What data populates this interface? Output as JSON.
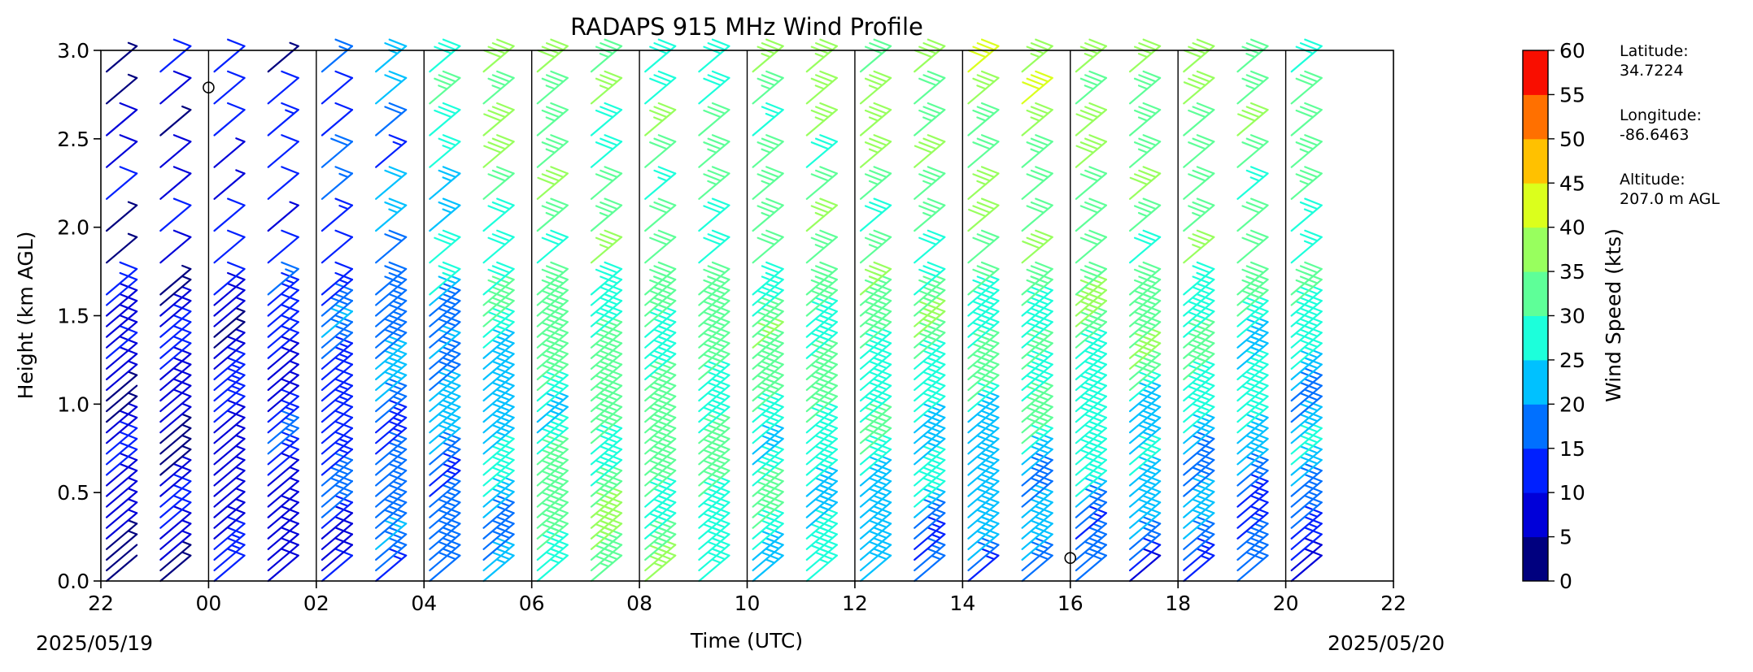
{
  "chart_data": {
    "type": "wind_barbs",
    "title": "RADAPS 915 MHz Wind Profile",
    "xlabel": "Time (UTC)",
    "ylabel": "Height (km AGL)",
    "x_tick_labels": [
      "22",
      "00",
      "02",
      "04",
      "06",
      "08",
      "10",
      "12",
      "14",
      "16",
      "18",
      "20",
      "22"
    ],
    "x_range_hours": [
      -2,
      22
    ],
    "y_ticks": [
      "0.0",
      "0.5",
      "1.0",
      "1.5",
      "2.0",
      "2.5",
      "3.0"
    ],
    "ylim": [
      0,
      3.0
    ],
    "start_date": "2025/05/19",
    "end_date": "2025/05/20",
    "vertical_lines_hours": [
      0,
      2,
      4,
      6,
      8,
      10,
      12,
      14,
      16,
      18,
      20
    ],
    "calm_markers": [
      {
        "hour": 0.0,
        "height_km": 2.79
      },
      {
        "hour": 16.0,
        "height_km": 0.13
      }
    ],
    "profile_times_hours": [
      -1.5,
      -0.5,
      0.5,
      1.5,
      2.5,
      3.5,
      4.5,
      5.5,
      6.5,
      7.5,
      8.5,
      9.5,
      10.5,
      11.5,
      12.5,
      13.5,
      14.5,
      15.5,
      16.5,
      17.5,
      18.5,
      19.5,
      20.5
    ],
    "speed_profiles_kts": [
      {
        "t": -2.0,
        "low": 6,
        "mid": 8,
        "top": 7
      },
      {
        "t": 0.0,
        "low": 7,
        "mid": 8,
        "top": 8
      },
      {
        "t": 2.0,
        "low": 10,
        "mid": 12,
        "top": 11
      },
      {
        "t": 3.0,
        "low": 14,
        "mid": 18,
        "top": 16
      },
      {
        "t": 4.0,
        "low": 16,
        "mid": 20,
        "top": 24
      },
      {
        "t": 5.0,
        "low": 18,
        "mid": 22,
        "top": 38
      },
      {
        "t": 6.0,
        "low": 26,
        "mid": 28,
        "top": 42
      },
      {
        "t": 7.0,
        "low": 34,
        "mid": 30,
        "top": 33
      },
      {
        "t": 8.0,
        "low": 33,
        "mid": 31,
        "top": 30
      },
      {
        "t": 10.0,
        "low": 28,
        "mid": 31,
        "top": 32
      },
      {
        "t": 12.0,
        "low": 22,
        "mid": 31,
        "top": 36
      },
      {
        "t": 14.0,
        "low": 16,
        "mid": 29,
        "top": 38
      },
      {
        "t": 16.0,
        "low": 18,
        "mid": 32,
        "top": 38
      },
      {
        "t": 18.0,
        "low": 14,
        "mid": 31,
        "top": 36
      },
      {
        "t": 20.0,
        "low": 13,
        "mid": 27,
        "top": 34
      },
      {
        "t": 22.0,
        "low": 12,
        "mid": 26,
        "top": 33
      }
    ],
    "direction_note": "",
    "colorbar": {
      "label": "Wind Speed (kts)",
      "ticks": [
        "0",
        "5",
        "10",
        "15",
        "20",
        "25",
        "30",
        "35",
        "40",
        "45",
        "50",
        "55",
        "60"
      ],
      "colors": [
        "#00007f",
        "#0000d9",
        "#0020ff",
        "#0070ff",
        "#00c1ff",
        "#1cffdb",
        "#5eff98",
        "#98ff5e",
        "#dbff1c",
        "#ffc100",
        "#ff7000",
        "#f90e00",
        "#7f0000"
      ]
    }
  },
  "site_info": {
    "lat_label": "Latitude:",
    "lat_value": "34.7224",
    "lon_label": "Longitude:",
    "lon_value": "-86.6463",
    "alt_label": "Altitude:",
    "alt_value": "207.0 m AGL"
  }
}
